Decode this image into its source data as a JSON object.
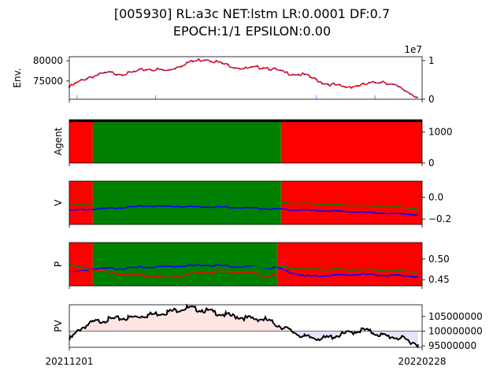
{
  "title_line1": "[005930] RL:a3c NET:lstm LR:0.0001 DF:0.7",
  "title_line2": "EPOCH:1/1 EPSILON:0.00",
  "chart_data": [
    {
      "type": "line",
      "name": "env",
      "ylabel": "Env.",
      "ylim": [
        70500,
        81000
      ],
      "yticks": [
        "75000",
        "80000"
      ],
      "ytick_values": [
        75000,
        80000
      ],
      "right_axis": {
        "ylim": [
          0,
          11000000
        ],
        "ticks": [
          "0",
          "1"
        ],
        "tick_values": [
          0,
          10000000
        ],
        "offset_label": "1e7"
      },
      "x_days": [
        0,
        5,
        10,
        15,
        20,
        25,
        30,
        35,
        40,
        45,
        50,
        55,
        60,
        65,
        70,
        75,
        80,
        85,
        89
      ],
      "price": [
        73500,
        76000,
        77000,
        76800,
        78000,
        77500,
        79500,
        80500,
        79000,
        78000,
        78500,
        77000,
        76500,
        74500,
        73500,
        74000,
        75000,
        73000,
        71000
      ]
    },
    {
      "type": "area",
      "name": "agent",
      "ylabel": "Agent",
      "ylim": [
        0,
        1400
      ],
      "yticks": [
        "0",
        "1000"
      ],
      "ytick_values": [
        0,
        1000
      ],
      "regions": [
        {
          "from": 0,
          "to": 6,
          "action": "buy"
        },
        {
          "from": 6,
          "to": 54,
          "action": "hold"
        },
        {
          "from": 54,
          "to": 90,
          "action": "buy"
        }
      ]
    },
    {
      "type": "line",
      "name": "value",
      "ylabel": "V",
      "ylim": [
        -0.25,
        0.15
      ],
      "yticks": [
        "−0.2",
        "0.0"
      ],
      "ytick_values": [
        -0.2,
        0.0
      ],
      "regions": [
        {
          "from": 0,
          "to": 6,
          "action": "buy"
        },
        {
          "from": 6,
          "to": 54,
          "action": "hold"
        },
        {
          "from": 54,
          "to": 90,
          "action": "buy"
        }
      ],
      "series": [
        {
          "color": "#0000ff",
          "x": [
            0,
            6,
            20,
            40,
            54,
            70,
            89
          ],
          "y": [
            -0.12,
            -0.11,
            -0.08,
            -0.09,
            -0.11,
            -0.13,
            -0.16
          ]
        },
        {
          "color": "#008000",
          "x": [
            0,
            6,
            20,
            40,
            54,
            70,
            89
          ],
          "y": [
            -0.06,
            -0.07,
            -0.07,
            -0.06,
            -0.05,
            -0.07,
            -0.1
          ]
        }
      ]
    },
    {
      "type": "line",
      "name": "policy",
      "ylabel": "P",
      "ylim": [
        0.435,
        0.54
      ],
      "yticks": [
        "0.45",
        "0.50"
      ],
      "ytick_values": [
        0.45,
        0.5
      ],
      "regions": [
        {
          "from": 0,
          "to": 6,
          "action": "buy"
        },
        {
          "from": 6,
          "to": 53,
          "action": "hold"
        },
        {
          "from": 53,
          "to": 90,
          "action": "buy"
        }
      ],
      "series": [
        {
          "color": "#0000ff",
          "x": [
            0,
            6,
            15,
            25,
            35,
            45,
            53,
            60,
            75,
            89
          ],
          "y": [
            0.466,
            0.476,
            0.478,
            0.482,
            0.486,
            0.481,
            0.478,
            0.458,
            0.463,
            0.458
          ]
        },
        {
          "color": "#008000",
          "x": [
            0,
            6,
            15,
            25,
            35,
            45,
            53,
            60,
            75,
            89
          ],
          "y": [
            0.485,
            0.474,
            0.468,
            0.474,
            0.48,
            0.478,
            0.482,
            0.476,
            0.474,
            0.47
          ]
        },
        {
          "color": "#ff0000",
          "x": [
            0,
            6,
            15,
            25,
            28,
            35,
            45,
            50,
            53
          ],
          "y": [
            0.465,
            0.473,
            0.462,
            0.455,
            0.46,
            0.47,
            0.468,
            0.46,
            0.462
          ]
        }
      ]
    },
    {
      "type": "line",
      "name": "pv",
      "ylabel": "PV",
      "ylim": [
        94500000,
        109000000
      ],
      "yticks": [
        "95000000",
        "100000000",
        "105000000"
      ],
      "ytick_values": [
        95000000,
        100000000,
        105000000
      ],
      "baseline": 100000000,
      "x_days": [
        0,
        3,
        6,
        10,
        15,
        20,
        25,
        30,
        35,
        40,
        45,
        50,
        55,
        60,
        65,
        70,
        75,
        80,
        85,
        89
      ],
      "y": [
        97000000,
        101000000,
        103000000,
        104000000,
        104500000,
        105500000,
        106500000,
        108000000,
        107000000,
        105500000,
        104500000,
        104000000,
        101000000,
        98000000,
        97500000,
        99000000,
        100500000,
        98500000,
        97500000,
        95500000
      ]
    }
  ],
  "x_tick_labels": [
    "20211201",
    "20220228"
  ],
  "colors": {
    "buy": "#ff0000",
    "hold": "#008000",
    "line_blue": "#0000ff",
    "line_green": "#008000",
    "line_red": "#ff0000",
    "pv_line": "#000000",
    "pv_fill_up": "#ffe4e4",
    "pv_fill_down": "#e4e4ff",
    "baseline": "#808080"
  }
}
